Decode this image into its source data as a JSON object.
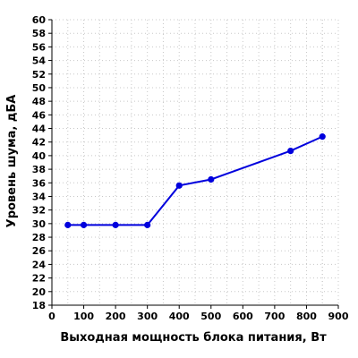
{
  "chart_data": {
    "type": "line",
    "title": "",
    "xlabel": "Выходная мощность блока питания, Вт",
    "ylabel": "Уровень шума, дБА",
    "xlim": [
      0,
      900
    ],
    "ylim": [
      18,
      60
    ],
    "xticks": [
      0,
      100,
      200,
      300,
      400,
      500,
      600,
      700,
      800,
      900
    ],
    "yticks": [
      18,
      20,
      22,
      24,
      26,
      28,
      30,
      32,
      34,
      36,
      38,
      40,
      42,
      44,
      46,
      48,
      50,
      52,
      54,
      56,
      58,
      60
    ],
    "grid": true,
    "series": [
      {
        "color": "#0000dd",
        "x": [
          50,
          100,
          200,
          300,
          400,
          500,
          750,
          850
        ],
        "y": [
          29.8,
          29.8,
          29.8,
          29.8,
          35.6,
          36.5,
          40.7,
          42.8
        ]
      }
    ]
  }
}
